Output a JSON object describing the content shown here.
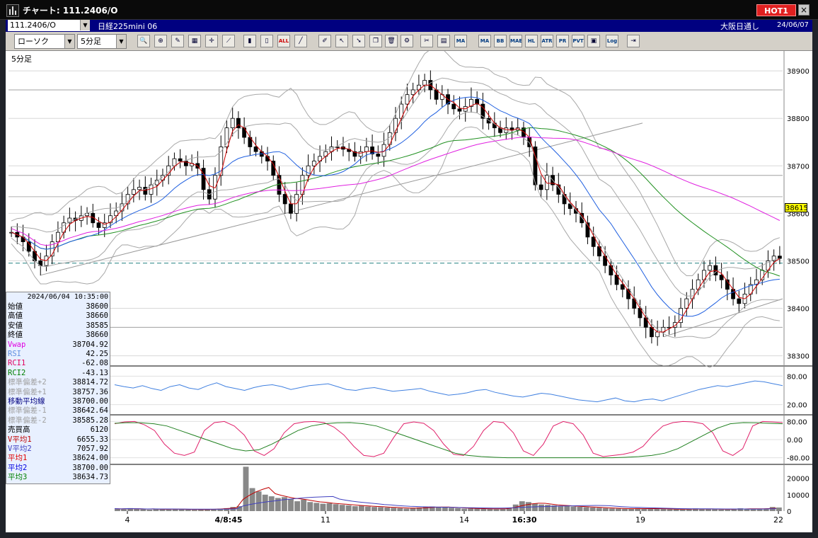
{
  "window": {
    "title": "チャート: 111.2406/O",
    "hot_label": "HOT1",
    "close_label": "×"
  },
  "infobar": {
    "code": "111.2406/O",
    "instrument": "日経225mini 06",
    "market": "大阪日通し",
    "date": "24/06/07"
  },
  "toolbar": {
    "chart_type": "ローソク",
    "interval": "5分足",
    "buttons": [
      "search",
      "zoom",
      "draw",
      "grid",
      "cross",
      "trend",
      "all",
      "line",
      "pen",
      "cursor",
      "erase",
      "copy",
      "delete",
      "settings",
      "tools",
      "palette",
      "ma1",
      "ma2",
      "bb",
      "mae",
      "hl",
      "atr",
      "pr",
      "pvt",
      "box",
      "log",
      "exit"
    ],
    "labels": {
      "all": "ALL",
      "mae": "MAE",
      "hl": "HL",
      "atr": "ATR",
      "pvt": "PVT",
      "log": "Log",
      "bb": "BB",
      "ma": "MA",
      "pr": "PR"
    }
  },
  "chart_header": {
    "interval_label": "5分足"
  },
  "price_axis": {
    "ticks": [
      "38900",
      "38800",
      "38700",
      "38600",
      "38500",
      "38400",
      "38300"
    ],
    "current_price": "38615"
  },
  "x_axis": {
    "ticks": [
      {
        "label": "4",
        "bold": false
      },
      {
        "label": "4/8:45",
        "bold": true
      },
      {
        "label": "11",
        "bold": false
      },
      {
        "label": "14",
        "bold": false
      },
      {
        "label": "16:30",
        "bold": true
      },
      {
        "label": "19",
        "bold": false
      },
      {
        "label": "22",
        "bold": false
      }
    ]
  },
  "rsi_axis": {
    "ticks": [
      "80.00",
      "20.00"
    ]
  },
  "rci_axis": {
    "ticks": [
      "80.00",
      "0.00",
      "-80.00"
    ]
  },
  "volume_axis": {
    "ticks": [
      "20000",
      "10000",
      "0"
    ]
  },
  "data_panel": {
    "timestamp": "2024/06/04 10:35:00",
    "rows": [
      {
        "label": "始値",
        "value": "38600",
        "color": "#000000"
      },
      {
        "label": "高値",
        "value": "38660",
        "color": "#000000"
      },
      {
        "label": "安値",
        "value": "38585",
        "color": "#000000"
      },
      {
        "label": "終値",
        "value": "38660",
        "color": "#000000"
      },
      {
        "label": "Vwap",
        "value": "38704.92",
        "color": "#e000e0"
      },
      {
        "label": "RSI",
        "value": "42.25",
        "color": "#6090e0"
      },
      {
        "label": "RCI1",
        "value": "-62.08",
        "color": "#e00060"
      },
      {
        "label": "RCI2",
        "value": "-43.13",
        "color": "#008000"
      },
      {
        "label": "標準偏差+2",
        "value": "38814.72",
        "color": "#a0a0a0"
      },
      {
        "label": "標準偏差+1",
        "value": "38757.36",
        "color": "#a0a0a0"
      },
      {
        "label": "移動平均線",
        "value": "38700.00",
        "color": "#000080"
      },
      {
        "label": "標準偏差-1",
        "value": "38642.64",
        "color": "#a0a0a0"
      },
      {
        "label": "標準偏差-2",
        "value": "38585.28",
        "color": "#a0a0a0"
      },
      {
        "label": "売買高",
        "value": "6120",
        "color": "#000000"
      },
      {
        "label": "V平均1",
        "value": "6655.33",
        "color": "#c00000"
      },
      {
        "label": "V平均2",
        "value": "7057.92",
        "color": "#4040c0"
      },
      {
        "label": "平均1",
        "value": "38624.00",
        "color": "#e00000"
      },
      {
        "label": "平均2",
        "value": "38700.00",
        "color": "#0000e0"
      },
      {
        "label": "平均3",
        "value": "38634.73",
        "color": "#008000"
      }
    ]
  },
  "colors": {
    "ma_short": "#d00000",
    "ma_mid": "#2060e0",
    "ma_long": "#209020",
    "vwap": "#e020e0",
    "bollinger": "#a8a8a8",
    "rsi": "#4080e0",
    "rci1": "#e0206a",
    "rci2": "#208020",
    "volume": "#888888"
  },
  "chart_data": {
    "type": "candlestick",
    "ylim": [
      38280,
      38930
    ],
    "closes": [
      38560,
      38550,
      38540,
      38520,
      38500,
      38490,
      38510,
      38540,
      38560,
      38580,
      38590,
      38585,
      38595,
      38600,
      38580,
      38570,
      38580,
      38595,
      38605,
      38620,
      38640,
      38650,
      38655,
      38640,
      38660,
      38670,
      38680,
      38700,
      38715,
      38710,
      38700,
      38705,
      38695,
      38650,
      38630,
      38680,
      38740,
      38780,
      38800,
      38780,
      38760,
      38740,
      38730,
      38720,
      38710,
      38680,
      38640,
      38620,
      38600,
      38640,
      38680,
      38700,
      38710,
      38720,
      38730,
      38740,
      38740,
      38735,
      38730,
      38720,
      38730,
      38740,
      38725,
      38720,
      38745,
      38770,
      38800,
      38830,
      38850,
      38860,
      38870,
      38880,
      38860,
      38840,
      38850,
      38830,
      38820,
      38815,
      38825,
      38840,
      38830,
      38800,
      38790,
      38780,
      38770,
      38780,
      38775,
      38780,
      38760,
      38740,
      38660,
      38650,
      38680,
      38660,
      38640,
      38620,
      38610,
      38600,
      38580,
      38550,
      38530,
      38510,
      38490,
      38470,
      38450,
      38440,
      38420,
      38400,
      38380,
      38360,
      38340,
      38350,
      38360,
      38360,
      38370,
      38400,
      38420,
      38440,
      38460,
      38480,
      38490,
      38470,
      38460,
      38440,
      38420,
      38410,
      38430,
      38450,
      38460,
      38480,
      38500,
      38510,
      38505
    ],
    "rsi": [
      62,
      58,
      55,
      60,
      54,
      50,
      58,
      62,
      55,
      52,
      60,
      66,
      58,
      54,
      50,
      56,
      60,
      62,
      58,
      52,
      56,
      60,
      62,
      64,
      58,
      52,
      50,
      54,
      56,
      52,
      48,
      50,
      52,
      54,
      48,
      44,
      40,
      42,
      45,
      50,
      52,
      46,
      42,
      38,
      36,
      40,
      44,
      42,
      38,
      34,
      30,
      28,
      26,
      30,
      34,
      28,
      26,
      30,
      32,
      28,
      34,
      40,
      46,
      52,
      56,
      60,
      58,
      62,
      66,
      70,
      68,
      64,
      60
    ],
    "rci1": [
      70,
      78,
      80,
      65,
      40,
      -20,
      -60,
      -70,
      -55,
      40,
      75,
      80,
      60,
      20,
      -50,
      -70,
      -40,
      30,
      70,
      78,
      80,
      75,
      55,
      20,
      -30,
      -70,
      -75,
      -60,
      10,
      70,
      78,
      72,
      40,
      -20,
      -65,
      -70,
      -30,
      40,
      80,
      75,
      30,
      -50,
      -70,
      -20,
      60,
      80,
      70,
      20,
      -60,
      -75,
      -70,
      -65,
      -55,
      -30,
      20,
      60,
      75,
      80,
      78,
      70,
      30,
      -50,
      -70,
      -40,
      60,
      80,
      78,
      75
    ],
    "rci2": [
      72,
      75,
      74,
      70,
      60,
      40,
      20,
      0,
      -20,
      -40,
      -50,
      -45,
      -20,
      10,
      40,
      60,
      70,
      74,
      75,
      70,
      60,
      40,
      20,
      0,
      -20,
      -40,
      -60,
      -70,
      -75,
      -78,
      -80,
      -80,
      -80,
      -80,
      -80,
      -80,
      -80,
      -80,
      -80,
      -78,
      -75,
      -70,
      -60,
      -40,
      -10,
      20,
      50,
      70,
      75,
      74,
      72,
      70
    ],
    "volume": [
      1500,
      1200,
      1800,
      1300,
      1100,
      900,
      1500,
      1200,
      1000,
      1300,
      1100,
      900,
      800,
      1000,
      1200,
      1300,
      1500,
      1800,
      2500,
      3000,
      27000,
      14000,
      12000,
      10000,
      9000,
      8000,
      8500,
      7500,
      6000,
      7000,
      5500,
      5000,
      4500,
      4800,
      4200,
      3800,
      3500,
      3000,
      3200,
      2800,
      2500,
      2400,
      2200,
      2000,
      1800,
      1500,
      1800,
      2200,
      2500,
      2800,
      2600,
      2400,
      2000,
      1800,
      1500,
      1600,
      1500,
      1400,
      1300,
      1200,
      1500,
      2000,
      4000,
      6000,
      5500,
      4500,
      4000,
      3800,
      3500,
      3200,
      3000,
      2800,
      2600,
      2400,
      2200,
      2000,
      1800,
      1600,
      1500,
      1400,
      1300,
      1800,
      1600,
      1500,
      1400,
      1300,
      1200,
      1100,
      1000,
      1400,
      1600,
      1300,
      1200,
      1100,
      1000,
      900,
      1500,
      1700,
      1400,
      1300,
      1200,
      1400,
      2500,
      2200
    ]
  }
}
